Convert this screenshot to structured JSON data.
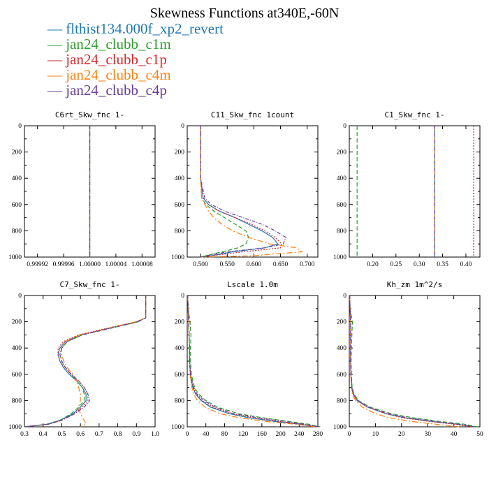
{
  "title": "Skewness Functions at340E,-60N",
  "legend": [
    {
      "label": "flthist134.000f_xp2_revert",
      "color": "#1f77b4"
    },
    {
      "label": "jan24_clubb_c1m",
      "color": "#2ca02c"
    },
    {
      "label": "jan24_clubb_c1p",
      "color": "#d62728"
    },
    {
      "label": "jan24_clubb_c4m",
      "color": "#ff7f0e"
    },
    {
      "label": "jan24_clubb_c4p",
      "color": "#6a3d9a"
    }
  ],
  "chart_data": [
    {
      "type": "line",
      "title": "C6rt_Skw_fnc   1-",
      "xlim": [
        0.9999,
        1.0001
      ],
      "ylim": [
        1000,
        0
      ],
      "xticks": [
        "0.99992",
        "0.99996",
        "1.00000",
        "1.00004",
        "1.00008"
      ],
      "xtick_values": [
        0.99992,
        0.99996,
        1.0,
        1.00004,
        1.00008
      ],
      "yticks": [
        0,
        200,
        400,
        600,
        800,
        1000
      ],
      "y": [
        0,
        100,
        200,
        300,
        400,
        500,
        600,
        700,
        800,
        900,
        1000
      ],
      "series": [
        {
          "values": [
            1.0,
            1.0,
            1.0,
            1.0,
            1.0,
            1.0,
            1.0,
            1.0,
            1.0,
            1.0,
            1.0
          ]
        },
        {
          "values": [
            1.0,
            1.0,
            1.0,
            1.0,
            1.0,
            1.0,
            1.0,
            1.0,
            1.0,
            1.0,
            1.0
          ]
        },
        {
          "values": [
            1.0,
            1.0,
            1.0,
            1.0,
            1.0,
            1.0,
            1.0,
            1.0,
            1.0,
            1.0,
            1.0
          ]
        },
        {
          "values": [
            1.0,
            1.0,
            1.0,
            1.0,
            1.0,
            1.0,
            1.0,
            1.0,
            1.0,
            1.0,
            1.0
          ]
        },
        {
          "values": [
            1.0,
            1.0,
            1.0,
            1.0,
            1.0,
            1.0,
            1.0,
            1.0,
            1.0,
            1.0,
            1.0
          ]
        }
      ]
    },
    {
      "type": "line",
      "title": "C11_Skw_fnc   1count",
      "xlim": [
        0.475,
        0.72
      ],
      "ylim": [
        1000,
        0
      ],
      "xticks": [
        "0.500",
        "0.550",
        "0.600",
        "0.650",
        "0.700"
      ],
      "xtick_values": [
        0.5,
        0.55,
        0.6,
        0.65,
        0.7
      ],
      "yticks": [
        0,
        200,
        400,
        600,
        800,
        1000
      ],
      "y": [
        0,
        200,
        400,
        550,
        600,
        650,
        700,
        750,
        800,
        850,
        900,
        930,
        960,
        990,
        1000
      ],
      "series": [
        {
          "values": [
            0.5,
            0.5,
            0.5,
            0.505,
            0.515,
            0.535,
            0.565,
            0.59,
            0.615,
            0.635,
            0.645,
            0.62,
            0.56,
            0.52,
            0.5
          ]
        },
        {
          "values": [
            0.5,
            0.5,
            0.5,
            0.502,
            0.51,
            0.525,
            0.545,
            0.565,
            0.585,
            0.59,
            0.585,
            0.57,
            0.54,
            0.51,
            0.5
          ]
        },
        {
          "values": [
            0.5,
            0.5,
            0.5,
            0.505,
            0.515,
            0.535,
            0.565,
            0.595,
            0.62,
            0.64,
            0.652,
            0.65,
            0.58,
            0.52,
            0.5
          ]
        },
        {
          "values": [
            0.5,
            0.5,
            0.5,
            0.502,
            0.508,
            0.515,
            0.525,
            0.54,
            0.56,
            0.59,
            0.63,
            0.68,
            0.69,
            0.6,
            0.5
          ]
        },
        {
          "values": [
            0.5,
            0.5,
            0.5,
            0.508,
            0.52,
            0.545,
            0.58,
            0.615,
            0.64,
            0.66,
            0.655,
            0.62,
            0.55,
            0.51,
            0.5
          ]
        }
      ]
    },
    {
      "type": "line",
      "title": "C1_Skw_fnc   1-",
      "xlim": [
        0.15,
        0.43
      ],
      "ylim": [
        1000,
        0
      ],
      "xticks": [
        "0.20",
        "0.25",
        "0.30",
        "0.35",
        "0.40"
      ],
      "xtick_values": [
        0.2,
        0.25,
        0.3,
        0.35,
        0.4
      ],
      "yticks": [
        0,
        200,
        400,
        600,
        800,
        1000
      ],
      "y": [
        0,
        100,
        200,
        300,
        400,
        500,
        600,
        700,
        800,
        900,
        1000
      ],
      "series": [
        {
          "values": [
            0.3333,
            0.3333,
            0.3333,
            0.3333,
            0.3333,
            0.3333,
            0.3333,
            0.3333,
            0.3333,
            0.3333,
            0.3333
          ]
        },
        {
          "values": [
            0.1667,
            0.1667,
            0.1667,
            0.1667,
            0.1667,
            0.1667,
            0.1667,
            0.1667,
            0.1667,
            0.1667,
            0.1667
          ]
        },
        {
          "values": [
            0.4167,
            0.4167,
            0.4167,
            0.4167,
            0.4167,
            0.4167,
            0.4167,
            0.4167,
            0.4167,
            0.4167,
            0.4167
          ]
        },
        {
          "values": [
            0.3333,
            0.3333,
            0.3333,
            0.3333,
            0.3333,
            0.3333,
            0.3333,
            0.3333,
            0.3333,
            0.3333,
            0.3333
          ]
        },
        {
          "values": [
            0.3333,
            0.3333,
            0.3333,
            0.3333,
            0.3333,
            0.3333,
            0.3333,
            0.3333,
            0.3333,
            0.3333,
            0.3333
          ]
        }
      ]
    },
    {
      "type": "line",
      "title": "C7_Skw_fnc   1-",
      "xlim": [
        0.3,
        1.0
      ],
      "ylim": [
        1000,
        0
      ],
      "xticks": [
        "0.3",
        "0.4",
        "0.5",
        "0.6",
        "0.7",
        "0.8",
        "0.9",
        "1.0"
      ],
      "xtick_values": [
        0.3,
        0.4,
        0.5,
        0.6,
        0.7,
        0.8,
        0.9,
        1.0
      ],
      "yticks": [
        0,
        200,
        400,
        600,
        800,
        1000
      ],
      "y": [
        0,
        100,
        170,
        200,
        250,
        300,
        350,
        400,
        450,
        500,
        550,
        600,
        650,
        700,
        750,
        800,
        850,
        900,
        950,
        980,
        1000
      ],
      "series": [
        {
          "values": [
            0.95,
            0.95,
            0.95,
            0.9,
            0.75,
            0.6,
            0.52,
            0.49,
            0.48,
            0.49,
            0.51,
            0.54,
            0.58,
            0.61,
            0.63,
            0.63,
            0.6,
            0.56,
            0.49,
            0.42,
            0.3
          ]
        },
        {
          "values": [
            0.95,
            0.95,
            0.95,
            0.91,
            0.76,
            0.61,
            0.53,
            0.5,
            0.49,
            0.5,
            0.52,
            0.55,
            0.58,
            0.61,
            0.62,
            0.62,
            0.59,
            0.55,
            0.49,
            0.43,
            0.3
          ]
        },
        {
          "values": [
            0.95,
            0.95,
            0.95,
            0.9,
            0.74,
            0.59,
            0.51,
            0.48,
            0.48,
            0.49,
            0.52,
            0.55,
            0.59,
            0.62,
            0.64,
            0.64,
            0.61,
            0.57,
            0.5,
            0.43,
            0.3
          ]
        },
        {
          "values": [
            0.95,
            0.95,
            0.95,
            0.9,
            0.75,
            0.6,
            0.52,
            0.5,
            0.5,
            0.51,
            0.53,
            0.56,
            0.58,
            0.59,
            0.6,
            0.6,
            0.59,
            0.6,
            0.62,
            0.63,
            0.6
          ]
        },
        {
          "values": [
            0.95,
            0.95,
            0.95,
            0.91,
            0.76,
            0.61,
            0.53,
            0.5,
            0.49,
            0.5,
            0.52,
            0.55,
            0.59,
            0.62,
            0.64,
            0.65,
            0.62,
            0.57,
            0.5,
            0.43,
            0.3
          ]
        }
      ]
    },
    {
      "type": "line",
      "title": "Lscale   1.0m",
      "xlim": [
        0,
        280
      ],
      "ylim": [
        1000,
        0
      ],
      "xticks": [
        "0",
        "40",
        "80",
        "120",
        "160",
        "200",
        "240",
        "280"
      ],
      "xtick_values": [
        0,
        40,
        80,
        120,
        160,
        200,
        240,
        280
      ],
      "yticks": [
        0,
        200,
        400,
        600,
        800,
        1000
      ],
      "y": [
        0,
        100,
        200,
        300,
        400,
        500,
        600,
        650,
        700,
        750,
        800,
        850,
        900,
        930,
        960,
        980,
        1000
      ],
      "series": [
        {
          "values": [
            1,
            2,
            3,
            4,
            5,
            5,
            7,
            9,
            12,
            18,
            30,
            50,
            90,
            130,
            190,
            240,
            280
          ]
        },
        {
          "values": [
            1,
            2,
            6,
            8,
            7,
            7,
            9,
            12,
            16,
            24,
            40,
            65,
            110,
            160,
            220,
            260,
            285
          ]
        },
        {
          "values": [
            1,
            2,
            3,
            4,
            5,
            5,
            7,
            9,
            13,
            19,
            32,
            55,
            95,
            140,
            200,
            245,
            280
          ]
        },
        {
          "values": [
            1,
            2,
            3,
            4,
            5,
            5,
            6,
            8,
            10,
            14,
            22,
            38,
            70,
            110,
            170,
            230,
            275
          ]
        },
        {
          "values": [
            1,
            2,
            3,
            4,
            5,
            5,
            7,
            10,
            14,
            21,
            36,
            60,
            100,
            150,
            210,
            250,
            282
          ]
        }
      ]
    },
    {
      "type": "line",
      "title": "Kh_zm   1m^2/s",
      "xlim": [
        0,
        50
      ],
      "ylim": [
        1000,
        0
      ],
      "xticks": [
        "0",
        "10",
        "20",
        "30",
        "40",
        "50"
      ],
      "xtick_values": [
        0,
        10,
        20,
        30,
        40,
        50
      ],
      "yticks": [
        0,
        200,
        400,
        600,
        800,
        1000
      ],
      "y": [
        0,
        100,
        200,
        300,
        400,
        500,
        600,
        700,
        750,
        800,
        850,
        900,
        930,
        960,
        980,
        1000
      ],
      "series": [
        {
          "values": [
            0.2,
            0.3,
            0.5,
            0.5,
            0.5,
            0.5,
            0.6,
            0.9,
            1.5,
            3,
            7,
            14,
            21,
            32,
            41,
            48
          ]
        },
        {
          "values": [
            0.2,
            0.3,
            1.2,
            1.0,
            0.8,
            0.7,
            0.8,
            1.1,
            1.8,
            3.5,
            8,
            16,
            24,
            35,
            44,
            49
          ]
        },
        {
          "values": [
            0.2,
            0.3,
            0.5,
            0.5,
            0.5,
            0.5,
            0.6,
            0.9,
            1.5,
            3,
            7,
            14,
            20,
            31,
            40,
            47
          ]
        },
        {
          "values": [
            0.2,
            0.3,
            0.5,
            0.5,
            0.5,
            0.5,
            0.6,
            0.8,
            1.2,
            2.4,
            5,
            10,
            15,
            24,
            33,
            42
          ]
        },
        {
          "values": [
            0.2,
            0.3,
            0.5,
            0.5,
            0.5,
            0.5,
            0.6,
            1.0,
            1.6,
            3.2,
            7.5,
            15,
            22,
            33,
            42,
            48
          ]
        }
      ]
    }
  ]
}
